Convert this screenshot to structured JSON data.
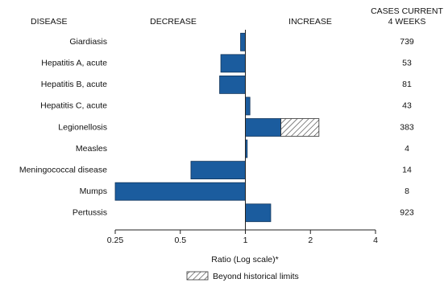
{
  "chart_data": {
    "type": "hbar",
    "headers": {
      "disease": "DISEASE",
      "decrease": "DECREASE",
      "increase": "INCREASE",
      "cases": [
        "CASES CURRENT",
        "4 WEEKS"
      ]
    },
    "categories": [
      "Giardiasis",
      "Hepatitis A, acute",
      "Hepatitis B, acute",
      "Hepatitis C, acute",
      "Legionellosis",
      "Measles",
      "Meningococcal disease",
      "Mumps",
      "Pertussis"
    ],
    "values": [
      0.95,
      0.77,
      0.76,
      1.05,
      2.19,
      1.02,
      0.56,
      0.25,
      1.31
    ],
    "historical_limits": [
      null,
      null,
      null,
      null,
      1.46,
      null,
      null,
      null,
      null
    ],
    "cases": [
      739,
      53,
      81,
      43,
      383,
      4,
      14,
      8,
      923
    ],
    "color": "#1b5c9e",
    "xlim": [
      0.25,
      4
    ],
    "xticks": [
      0.25,
      0.5,
      1,
      2,
      4
    ],
    "log_scale": true,
    "x_label": "Ratio (Log scale)*",
    "legend": "Beyond historical limits"
  }
}
